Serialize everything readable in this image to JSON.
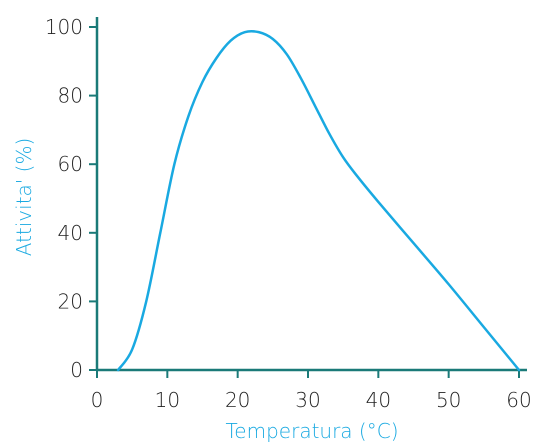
{
  "chart_data": {
    "type": "line",
    "xlabel": "Temperatura (°C)",
    "ylabel": "Attivita' (%)",
    "xlim": [
      0,
      60
    ],
    "ylim": [
      0,
      100
    ],
    "x_ticks": [
      0,
      10,
      20,
      30,
      40,
      50,
      60
    ],
    "y_ticks": [
      0,
      20,
      40,
      60,
      80,
      100
    ],
    "grid": false,
    "colors": {
      "axis": "#1a7a78",
      "line": "#19a9e1",
      "tick_text": "#222222",
      "axis_title": "#19a9e1"
    },
    "series": [
      {
        "x": [
          3,
          5,
          7,
          9,
          11,
          13,
          15,
          17,
          19,
          21,
          23,
          25,
          27,
          29,
          31,
          33,
          35,
          37,
          40,
          45,
          50,
          55,
          60
        ],
        "y": [
          0,
          6,
          20,
          40,
          60,
          74,
          84,
          91,
          96,
          98.5,
          98.5,
          96.5,
          92,
          85,
          77,
          69,
          62,
          56.5,
          49,
          37,
          25,
          12.5,
          0
        ]
      }
    ]
  }
}
